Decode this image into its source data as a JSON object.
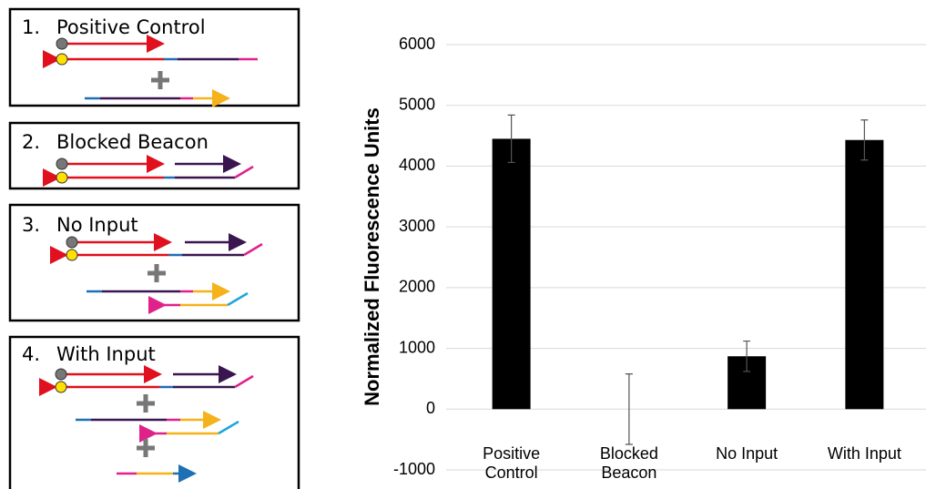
{
  "panels": [
    {
      "number": "1.",
      "label": "Positive Control"
    },
    {
      "number": "2.",
      "label": "Blocked Beacon"
    },
    {
      "number": "3.",
      "label": "No Input"
    },
    {
      "number": "4.",
      "label": "With Input"
    }
  ],
  "chart_data": {
    "type": "bar",
    "y_label": "Normalized Fluorescence Units",
    "categories": [
      "Positive Control",
      "Blocked Beacon",
      "No Input",
      "With Input"
    ],
    "values": [
      4450,
      0,
      870,
      4430
    ],
    "errors": [
      390,
      580,
      250,
      330
    ],
    "color": "#000000",
    "ylim": [
      -1000,
      6000
    ],
    "yticks": [
      -1000,
      0,
      1000,
      2000,
      3000,
      4000,
      5000,
      6000
    ],
    "grid": true
  }
}
